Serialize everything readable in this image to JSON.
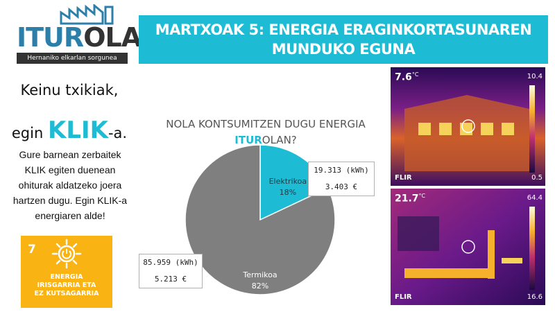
{
  "logo": {
    "word_part1": "ITUR",
    "word_part2": "OLA",
    "tagline": "Hernaniko elkarlan sorgunea"
  },
  "header": {
    "line1": "MARTXOAK 5: ENERGIA ERAGINKORTASUNAREN",
    "line2": "MUNDUKO EGUNA"
  },
  "slogan": {
    "line1": "Keinu txikiak,",
    "line2_pre": "egin",
    "line2_highlight": "KLIK",
    "line2_post": "-a."
  },
  "description": "Gure barnean zerbaitek KLIK egiten duenean ohiturak aldatzeko joera hartzen dugu. Egin KLIK-a energiaren alde!",
  "sdg": {
    "number": "7",
    "label_line1": "ENERGIA",
    "label_line2": "IRISGARRIA ETA",
    "label_line3": "EZ KUTSAGARRIA",
    "color": "#f9b313",
    "icon": "sun-power-icon"
  },
  "chart_title": {
    "line1": "NOLA KONTSUMITZEN DUGU ENERGIA",
    "line2_highlight": "ITUR",
    "line2_rest": "OLAN?"
  },
  "chart_data": {
    "type": "pie",
    "title": "NOLA KONTSUMITZEN DUGU ENERGIA ITUROLAN?",
    "slices": [
      {
        "label": "Elektrikoa",
        "percent": 18,
        "pct_label": "18%",
        "kwh": "19.313 (kWh)",
        "cost": "3.403 €",
        "color": "#1ebcd4"
      },
      {
        "label": "Termikoa",
        "percent": 82,
        "pct_label": "82%",
        "kwh": "85.959 (kWh)",
        "cost": "5.213 €",
        "color": "#7f7f7f"
      }
    ]
  },
  "thermal_images": [
    {
      "temp": "7.6",
      "unit": "°C",
      "scale_max": "10.4",
      "scale_min": "0.5",
      "brand": "FLIR"
    },
    {
      "temp": "21.7",
      "unit": "°C",
      "scale_max": "64.4",
      "scale_min": "16.6",
      "brand": "FLIR"
    }
  ]
}
